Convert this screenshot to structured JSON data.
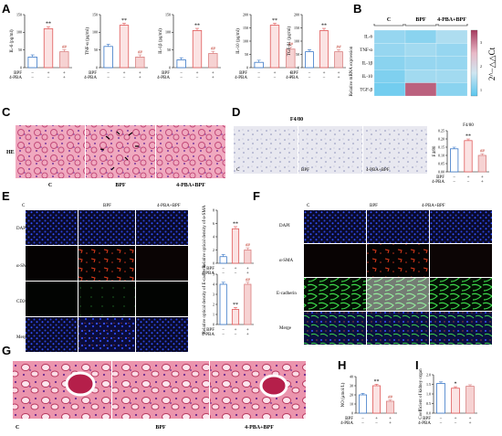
{
  "panels": {
    "A": "A",
    "B": "B",
    "C": "C",
    "D": "D",
    "E": "E",
    "F": "F",
    "G": "G",
    "H": "H",
    "I": "I"
  },
  "conds": {
    "bpf": "BPF",
    "pba": "4-PBA",
    "minus": "−",
    "plus": "+"
  },
  "colors": {
    "c": "#3a78c8",
    "bpf": "#e05a5a",
    "pba": "#d98080",
    "c_fill": "#ffffff",
    "bpf_fill": "#fbe3e3",
    "pba_fill": "#f6d2d2"
  },
  "chart_data": [
    {
      "type": "bar",
      "panel": "A",
      "ylabel": "IL-6 (pg/ml)",
      "categories": [
        "C",
        "BPF",
        "4-PBA+BPF"
      ],
      "values": [
        30,
        110,
        45
      ],
      "ylim": [
        0,
        150
      ],
      "yticks": [
        0,
        50,
        100,
        150
      ],
      "annotations": [
        "",
        "**",
        "##"
      ]
    },
    {
      "type": "bar",
      "panel": "A",
      "ylabel": "TNF-α (pg/ml)",
      "categories": [
        "C",
        "BPF",
        "4-PBA+BPF"
      ],
      "values": [
        60,
        120,
        30
      ],
      "ylim": [
        0,
        150
      ],
      "yticks": [
        0,
        50,
        100,
        150
      ],
      "annotations": [
        "",
        "**",
        "##"
      ]
    },
    {
      "type": "bar",
      "panel": "A",
      "ylabel": "IL-1β (pg/ml)",
      "categories": [
        "C",
        "BPF",
        "4-PBA+BPF"
      ],
      "values": [
        22,
        105,
        40
      ],
      "ylim": [
        0,
        150
      ],
      "yticks": [
        0,
        50,
        100,
        150
      ],
      "annotations": [
        "",
        "**",
        "##"
      ]
    },
    {
      "type": "bar",
      "panel": "A",
      "ylabel": "IL-10 (pg/ml)",
      "categories": [
        "C",
        "BPF",
        "4-PBA+BPF"
      ],
      "values": [
        20,
        160,
        70
      ],
      "ylim": [
        0,
        200
      ],
      "yticks": [
        0,
        50,
        100,
        150,
        200
      ],
      "annotations": [
        "",
        "**",
        "##"
      ]
    },
    {
      "type": "bar",
      "panel": "A",
      "ylabel": "TGF-β1 (pg/ml)",
      "categories": [
        "C",
        "BPF",
        "4-PBA+BPF"
      ],
      "values": [
        60,
        140,
        60
      ],
      "ylim": [
        0,
        200
      ],
      "yticks": [
        0,
        50,
        100,
        150,
        200
      ],
      "annotations": [
        "",
        "**",
        "##"
      ]
    },
    {
      "type": "heatmap",
      "panel": "B",
      "columns": [
        "C",
        "BPF",
        "4-PBA+BPF"
      ],
      "rows": [
        "IL-6",
        "TNF-α",
        "IL-1β",
        "IL-10",
        "TGF-β"
      ],
      "ylabel": "Relative mRNA expression",
      "colorbar_label": "2^−△△Ct",
      "colorbar_ticks": [
        1,
        2,
        3
      ],
      "range": [
        0.7,
        3.5
      ]
    },
    {
      "type": "bar",
      "panel": "D",
      "ylabel": "F4/80",
      "title": "F4/80",
      "categories": [
        "C",
        "BPF",
        "4-PBA+BPF"
      ],
      "values": [
        0.14,
        0.19,
        0.1
      ],
      "ylim": [
        0,
        0.25
      ],
      "yticks": [
        0,
        0.05,
        0.1,
        0.15,
        0.2,
        0.25
      ],
      "annotations": [
        "",
        "**",
        "##"
      ]
    },
    {
      "type": "bar",
      "panel": "E",
      "ylabel": "Relative optical density of α-SMA",
      "categories": [
        "C",
        "BPF",
        "4-PBA+BPF"
      ],
      "values": [
        1,
        5.2,
        2
      ],
      "ylim": [
        0,
        8
      ],
      "yticks": [
        0,
        2,
        4,
        6,
        8
      ],
      "annotations": [
        "",
        "**",
        "##"
      ]
    },
    {
      "type": "bar",
      "panel": "E",
      "ylabel": "Relative optical density of E-cadherin",
      "categories": [
        "C",
        "BPF",
        "4-PBA+BPF"
      ],
      "values": [
        4,
        1.5,
        4
      ],
      "ylim": [
        0,
        5
      ],
      "yticks": [
        0,
        1,
        2,
        3,
        4,
        5
      ],
      "annotations": [
        "",
        "**",
        "##"
      ]
    },
    {
      "type": "bar",
      "panel": "H",
      "ylabel": "NO (μmol/L)",
      "categories": [
        "C",
        "BPF",
        "4-PBA+BPF"
      ],
      "values": [
        20,
        30,
        13
      ],
      "ylim": [
        0,
        40
      ],
      "yticks": [
        0,
        10,
        20,
        30,
        40
      ],
      "annotations": [
        "",
        "**",
        "##"
      ]
    },
    {
      "type": "bar",
      "panel": "I",
      "ylabel": "Coefficient of kidney organ",
      "categories": [
        "C",
        "BPF",
        "4-PBA+BPF"
      ],
      "values": [
        1.55,
        1.3,
        1.4
      ],
      "ylim": [
        0,
        2.0
      ],
      "yticks": [
        0,
        0.5,
        1.0,
        1.5,
        2.0
      ],
      "annotations": [
        "",
        "*",
        ""
      ]
    }
  ],
  "hm_values": [
    [
      1.2,
      1.1,
      1.4
    ],
    [
      1.2,
      1.3,
      1.2
    ],
    [
      1.1,
      1.2,
      1.2
    ],
    [
      1.0,
      1.3,
      1.3
    ],
    [
      0.9,
      3.2,
      1.1
    ]
  ],
  "labels": {
    "he": "HE",
    "c": "C",
    "bpf": "BPF",
    "pba_bpf": "4-PBA+BPF",
    "f480": "F4/80",
    "dapi": "DAPI",
    "asma": "α-SMA",
    "cd206": "CD206",
    "merge": "Merge",
    "ecad": "E-cadherin"
  }
}
